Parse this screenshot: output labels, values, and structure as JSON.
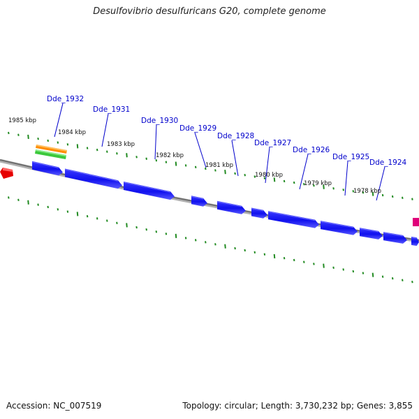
{
  "header": {
    "title": "Desulfovibrio desulfuricans G20, complete genome"
  },
  "footer": {
    "accession": "Accession: NC_007519",
    "topology": "Topology: circular; Length: 3,730,232 bp; Genes: 3,855"
  },
  "colors": {
    "gene": "#1010ee",
    "gene_highlight": "#6a6aff",
    "ticks": "#228b22",
    "backbone": "#808080",
    "gene_label": "#0000cc",
    "red_feature": "#e60000",
    "pink_feature": "#e0007a",
    "orange_bar": "#ff8c00",
    "green_bar": "#3cc83c"
  },
  "kbp_labels": [
    "1985 kbp",
    "1984 kbp",
    "1983 kbp",
    "1982 kbp",
    "1981 kbp",
    "1980 kbp",
    "1979 kbp",
    "1978 kbp"
  ],
  "gene_labels": [
    "Dde_1932",
    "Dde_1931",
    "Dde_1930",
    "Dde_1929",
    "Dde_1928",
    "Dde_1927",
    "Dde_1926",
    "Dde_1925",
    "Dde_1924"
  ]
}
